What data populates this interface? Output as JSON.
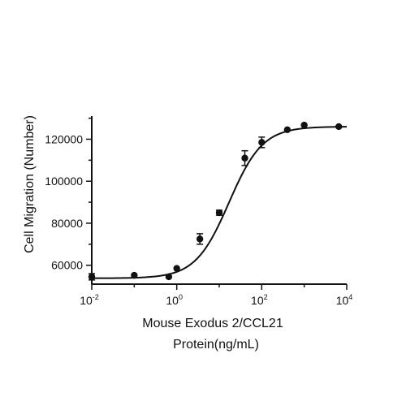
{
  "chart_data": {
    "type": "scatter",
    "x_scale": "log10",
    "xlabel_lines": [
      "Mouse Exodus 2/CCL21",
      "Protein(ng/mL)"
    ],
    "ylabel": "Cell Migration (Number)",
    "xlim": [
      0.01,
      10000
    ],
    "ylim": [
      51000,
      131000
    ],
    "x_ticks": [
      {
        "value": 0.01,
        "base": "10",
        "exp": "-2"
      },
      {
        "value": 1,
        "base": "10",
        "exp": "0"
      },
      {
        "value": 100,
        "base": "10",
        "exp": "2"
      },
      {
        "value": 10000,
        "base": "10",
        "exp": "4"
      }
    ],
    "y_ticks": [
      {
        "value": 60000,
        "label": "60000"
      },
      {
        "value": 80000,
        "label": "80000"
      },
      {
        "value": 100000,
        "label": "100000"
      },
      {
        "value": 120000,
        "label": "120000"
      }
    ],
    "points": [
      {
        "x": 0.01,
        "y": 54500,
        "err": 1500
      },
      {
        "x": 0.1,
        "y": 55200,
        "err": 0
      },
      {
        "x": 0.65,
        "y": 54500,
        "err": 0
      },
      {
        "x": 1.0,
        "y": 58500,
        "err": 0
      },
      {
        "x": 3.5,
        "y": 72500,
        "err": 2500
      },
      {
        "x": 10,
        "y": 85000,
        "err": 1200
      },
      {
        "x": 40,
        "y": 111000,
        "err": 3500
      },
      {
        "x": 100,
        "y": 118500,
        "err": 2500
      },
      {
        "x": 400,
        "y": 124500,
        "err": 0
      },
      {
        "x": 1000,
        "y": 126700,
        "err": 0
      },
      {
        "x": 6500,
        "y": 126000,
        "err": 0
      }
    ],
    "fit": {
      "model": "4PL",
      "bottom": 53800,
      "top": 126000,
      "ec50": 17,
      "hill": 1.1
    },
    "colors": {
      "points": "#111111",
      "axes": "#111111",
      "fit": "#111111"
    }
  }
}
